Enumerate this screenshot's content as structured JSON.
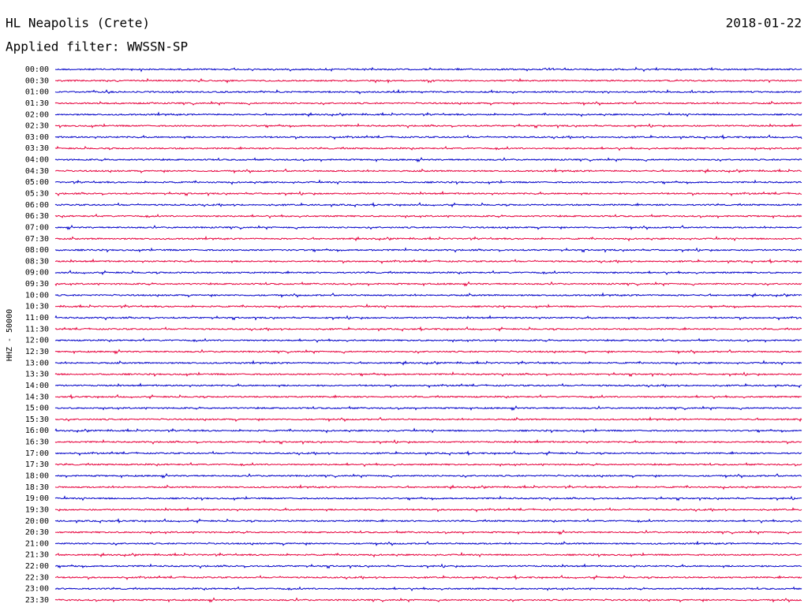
{
  "header": {
    "station": "HL Neapolis (Crete)",
    "date": "2018-01-22",
    "filter": "Applied filter: WWSSN-SP"
  },
  "axis_label": "HHZ - 50000",
  "trace_colors": [
    "#0000c8",
    "#e6003c"
  ],
  "rows": [
    "00:00",
    "00:30",
    "01:00",
    "01:30",
    "02:00",
    "02:30",
    "03:00",
    "03:30",
    "04:00",
    "04:30",
    "05:00",
    "05:30",
    "06:00",
    "06:30",
    "07:00",
    "07:30",
    "08:00",
    "08:30",
    "09:00",
    "09:30",
    "10:00",
    "10:30",
    "11:00",
    "11:30",
    "12:00",
    "12:30",
    "13:00",
    "13:30",
    "14:00",
    "14:30",
    "15:00",
    "15:30",
    "16:00",
    "16:30",
    "17:00",
    "17:30",
    "18:00",
    "18:30",
    "19:00",
    "19:30",
    "20:00",
    "20:30",
    "21:00",
    "21:30",
    "22:00",
    "22:30",
    "23:00",
    "23:30"
  ]
}
